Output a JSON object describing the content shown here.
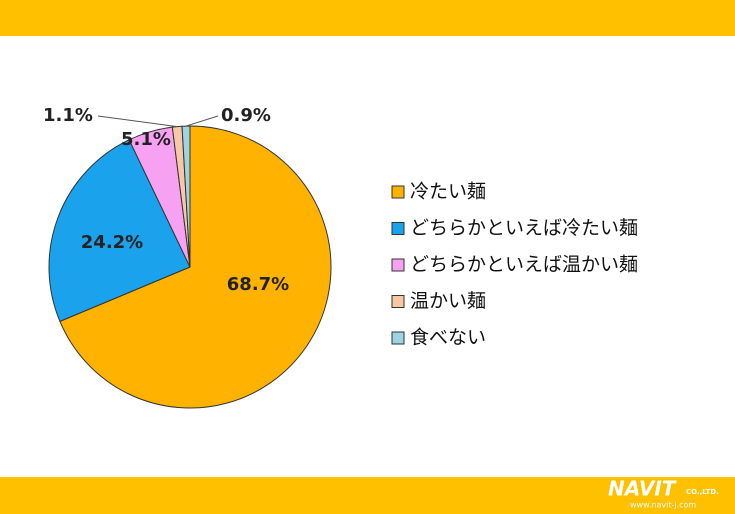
{
  "chart_data": {
    "type": "pie",
    "categories": [
      "冷たい麺",
      "どちらかといえば冷たい麺",
      "どちらかといえば温かい麺",
      "温かい麺",
      "食べない"
    ],
    "values": [
      68.7,
      24.2,
      5.1,
      1.1,
      0.9
    ],
    "value_labels": [
      "68.7%",
      "24.2%",
      "5.1%",
      "1.1%",
      "0.9%"
    ],
    "colors": [
      "#FFB300",
      "#1AA3EC",
      "#F7A1F3",
      "#F8C7A6",
      "#9ED3E6"
    ]
  },
  "footer": {
    "logo": "NAVIT",
    "company": "CO.,LTD.",
    "url": "www.navit-j.com"
  }
}
